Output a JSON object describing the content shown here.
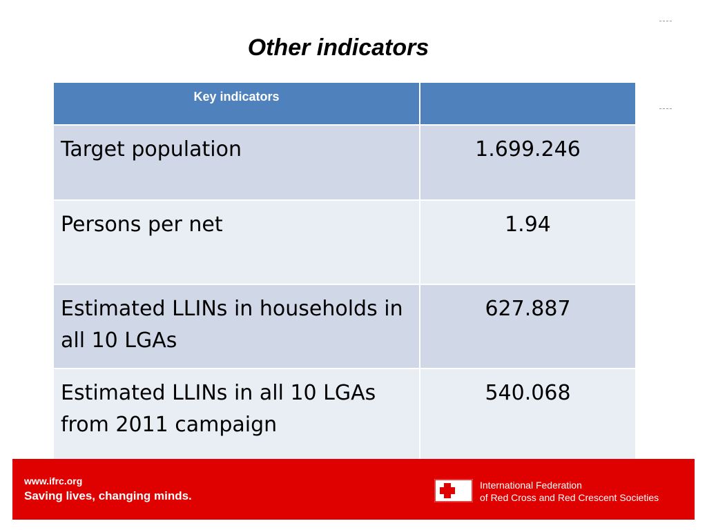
{
  "slide": {
    "title": "Other indicators"
  },
  "table": {
    "headers": [
      "Key indicators",
      ""
    ],
    "rows": [
      {
        "label": "Target population",
        "value": "1.699.246"
      },
      {
        "label": "Persons per net",
        "value": "1.94"
      },
      {
        "label": "Estimated LLINs in households in all 10 LGAs",
        "value": "627.887"
      },
      {
        "label": "Estimated LLINs in all 10 LGAs from 2011 campaign",
        "value": "540.068"
      }
    ]
  },
  "footer": {
    "url": "www.ifrc.org",
    "slogan": "Saving lives, changing minds.",
    "org_line1": "International Federation",
    "org_line2": "of Red Cross and Red Crescent Societies",
    "logo_icon": "red-cross-red-crescent-logo",
    "brand_red": "#df0000"
  },
  "colors": {
    "header_blue": "#4f81bd",
    "row_dark": "#d0d8e8",
    "row_light": "#e9edf4"
  }
}
